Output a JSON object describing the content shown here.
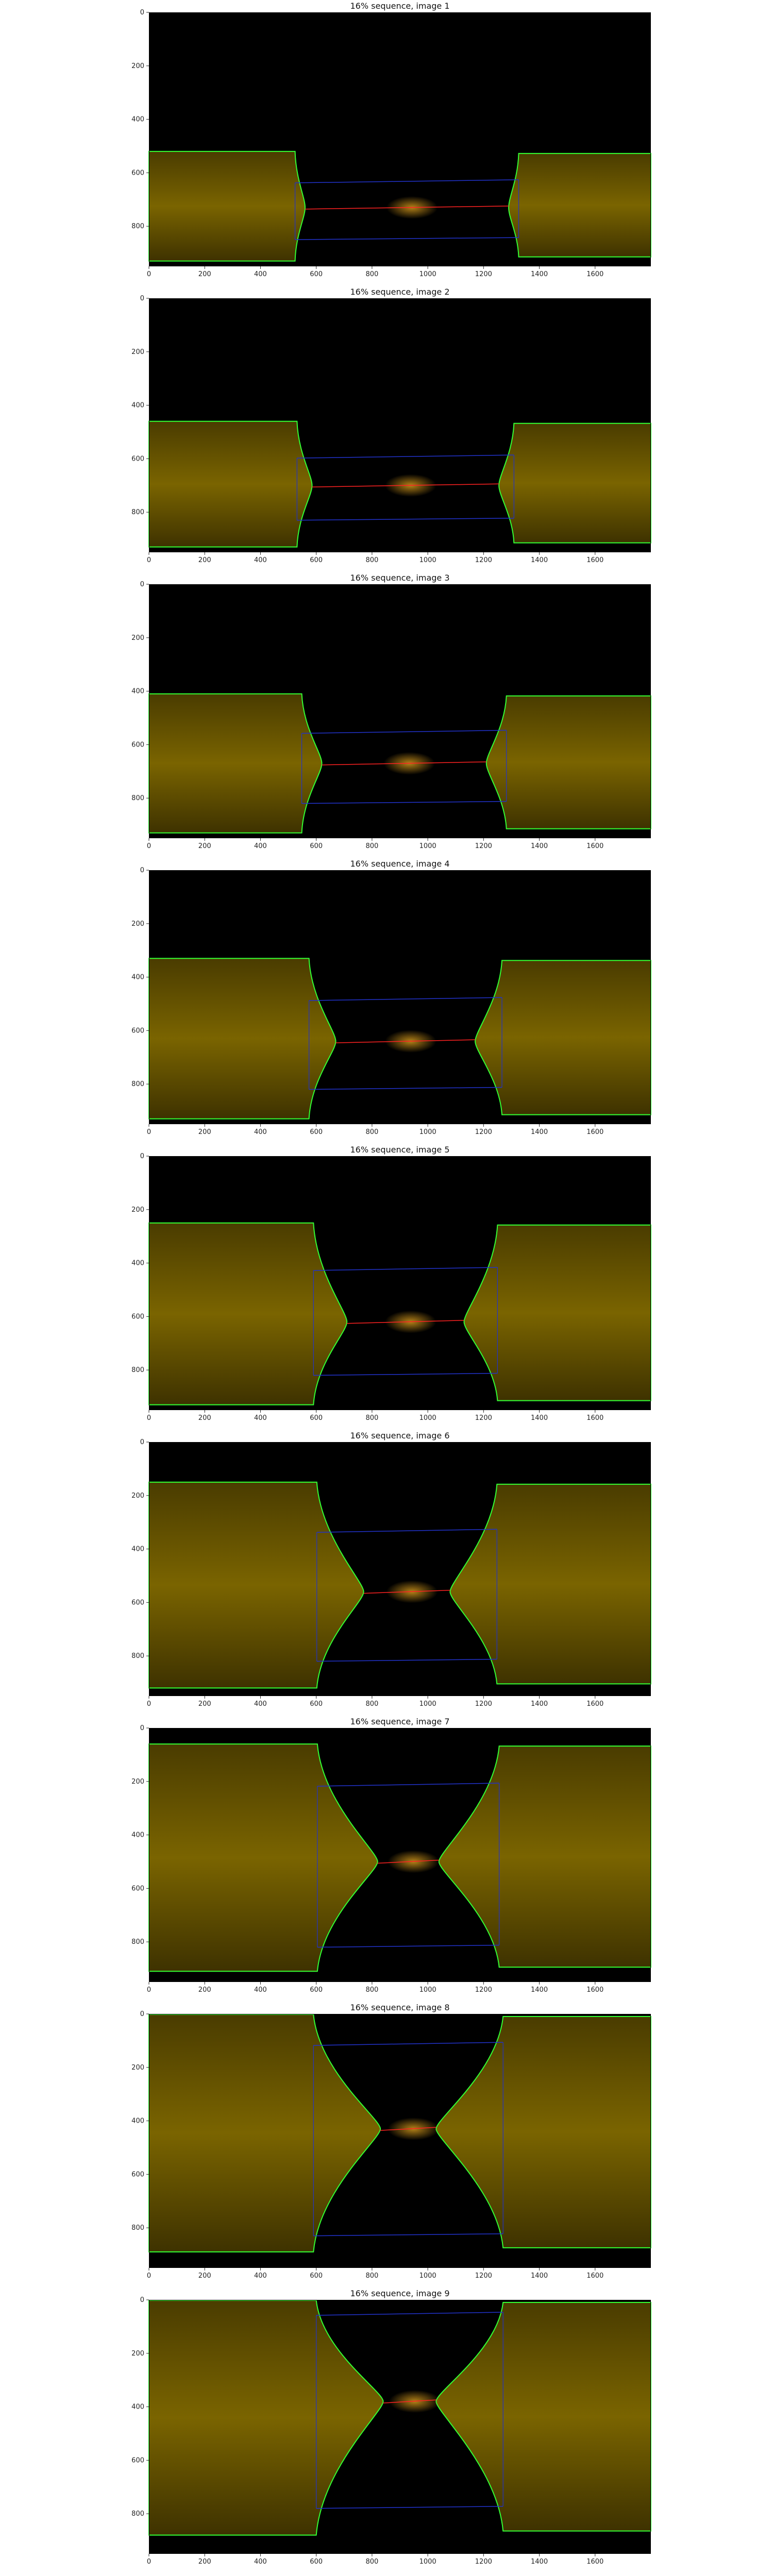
{
  "figure": {
    "x_ticks": [
      "0",
      "200",
      "400",
      "600",
      "800",
      "1000",
      "1200",
      "1400",
      "1600"
    ],
    "y_ticks": [
      "0",
      "200",
      "400",
      "600",
      "800"
    ],
    "xlim": [
      0,
      1800
    ],
    "ylim": [
      950,
      0
    ],
    "colors": {
      "background": "#000000",
      "body": "#7a6400",
      "contour": "#33ff33",
      "width_lines": "#2233cc",
      "neck_line": "#ff2222"
    },
    "panels": [
      {
        "title": "16% sequence, image 1",
        "top_y": 520,
        "bot_y": 930,
        "neck_y": 730,
        "blue_top": 630,
        "blue_bot": 850,
        "left_edge": 530,
        "right_edge": 1320,
        "bulge": 30
      },
      {
        "title": "16% sequence, image 2",
        "top_y": 460,
        "bot_y": 930,
        "neck_y": 700,
        "blue_top": 590,
        "blue_bot": 830,
        "left_edge": 540,
        "right_edge": 1300,
        "bulge": 45
      },
      {
        "title": "16% sequence, image 3",
        "top_y": 410,
        "bot_y": 930,
        "neck_y": 670,
        "blue_top": 550,
        "blue_bot": 820,
        "left_edge": 560,
        "right_edge": 1270,
        "bulge": 60
      },
      {
        "title": "16% sequence, image 4",
        "top_y": 330,
        "bot_y": 930,
        "neck_y": 640,
        "blue_top": 480,
        "blue_bot": 820,
        "left_edge": 590,
        "right_edge": 1250,
        "bulge": 80
      },
      {
        "title": "16% sequence, image 5",
        "top_y": 250,
        "bot_y": 930,
        "neck_y": 620,
        "blue_top": 420,
        "blue_bot": 820,
        "left_edge": 610,
        "right_edge": 1230,
        "bulge": 100
      },
      {
        "title": "16% sequence, image 6",
        "top_y": 150,
        "bot_y": 920,
        "neck_y": 560,
        "blue_top": 330,
        "blue_bot": 820,
        "left_edge": 630,
        "right_edge": 1220,
        "bulge": 140
      },
      {
        "title": "16% sequence, image 7",
        "top_y": 60,
        "bot_y": 910,
        "neck_y": 500,
        "blue_top": 210,
        "blue_bot": 820,
        "left_edge": 640,
        "right_edge": 1220,
        "bulge": 180
      },
      {
        "title": "16% sequence, image 8",
        "top_y": 0,
        "bot_y": 890,
        "neck_y": 430,
        "blue_top": 110,
        "blue_bot": 830,
        "left_edge": 630,
        "right_edge": 1230,
        "bulge": 200
      },
      {
        "title": "16% sequence, image 9",
        "top_y": 0,
        "bot_y": 880,
        "neck_y": 380,
        "blue_top": 50,
        "blue_bot": 780,
        "left_edge": 640,
        "right_edge": 1230,
        "bulge": 200
      }
    ]
  }
}
